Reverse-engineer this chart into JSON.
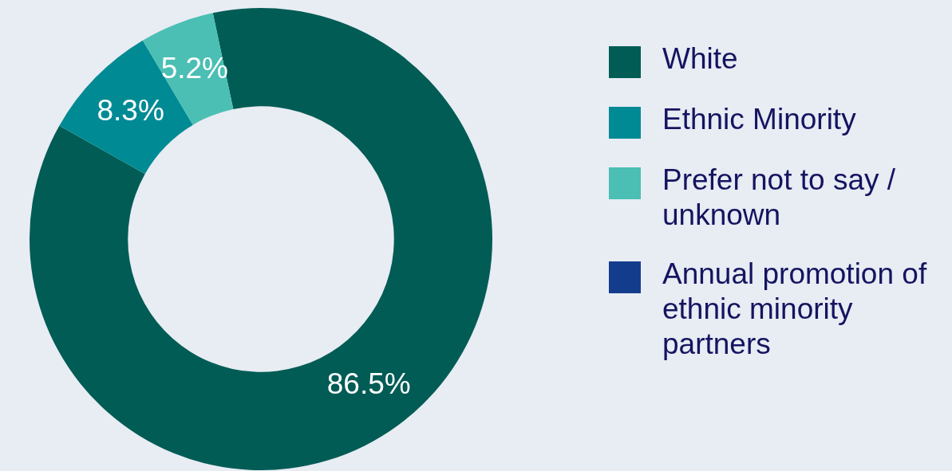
{
  "chart_data": {
    "type": "donut",
    "categories": [
      "White",
      "Ethnic Minority",
      "Prefer not to say / unknown",
      "Annual promotion of ethnic minority partners"
    ],
    "values": [
      86.5,
      8.3,
      5.2,
      0
    ],
    "colors": [
      "#005c55",
      "#008a94",
      "#4bbfb4",
      "#143c8c"
    ],
    "value_labels": [
      "86.5%",
      "8.3%",
      "5.2%",
      null
    ],
    "legend": "right"
  }
}
